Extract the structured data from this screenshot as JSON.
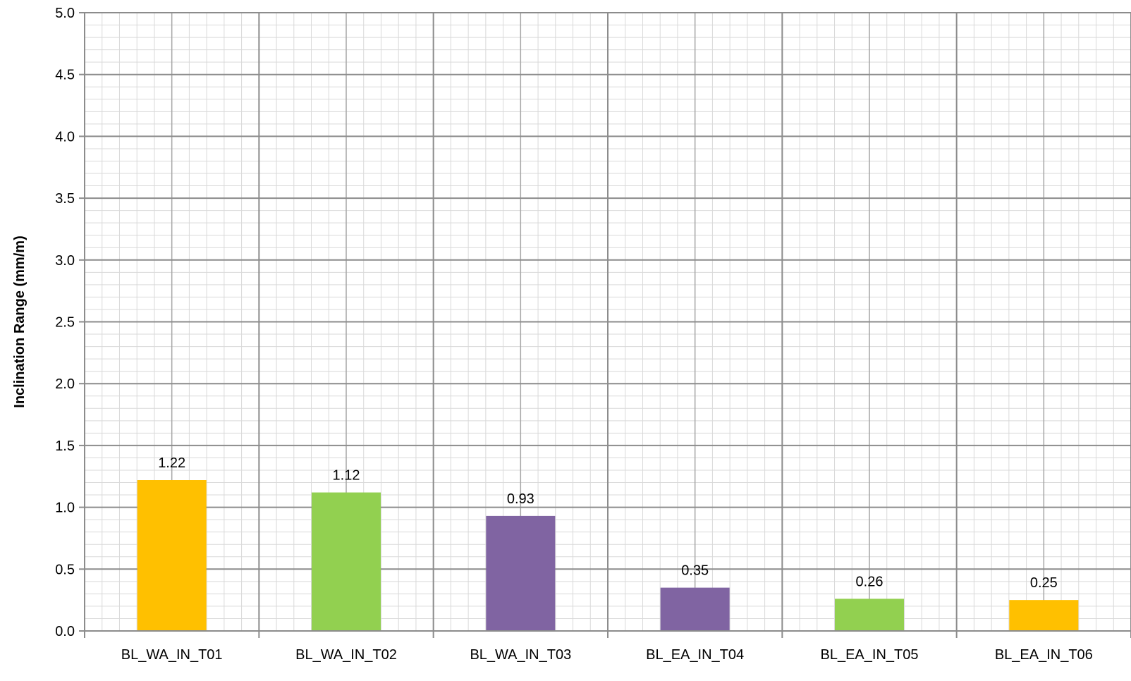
{
  "chart_data": {
    "type": "bar",
    "ylabel": "Inclination Range (mm/m)",
    "xlabel": "",
    "ylim": [
      0,
      5.0
    ],
    "y_major_step": 0.5,
    "y_minor_step": 0.1,
    "y_tick_labels": [
      "0.0",
      "0.5",
      "1.0",
      "1.5",
      "2.0",
      "2.5",
      "3.0",
      "3.5",
      "4.0",
      "4.5",
      "5.0"
    ],
    "categories": [
      "BL_WA_IN_T01",
      "BL_WA_IN_T02",
      "BL_WA_IN_T03",
      "BL_EA_IN_T04",
      "BL_EA_IN_T05",
      "BL_EA_IN_T06"
    ],
    "values": [
      1.22,
      1.12,
      0.93,
      0.35,
      0.26,
      0.25
    ],
    "data_labels": [
      "1.22",
      "1.12",
      "0.93",
      "0.35",
      "0.26",
      "0.25"
    ],
    "bar_colors": [
      "#FFC000",
      "#92D050",
      "#8064A2",
      "#8064A2",
      "#92D050",
      "#FFC000"
    ],
    "grid": true,
    "legend": "none"
  }
}
